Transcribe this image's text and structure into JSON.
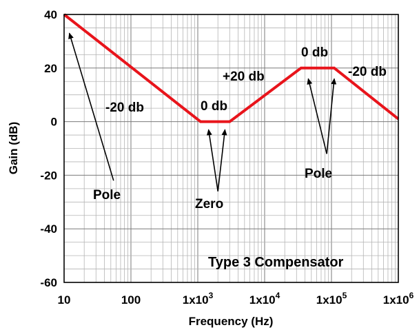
{
  "chart_data": {
    "type": "line",
    "xlabel": "Frequency (Hz)",
    "ylabel": "Gain (dB)",
    "x_scale": "log",
    "xlim": [
      10,
      1000000
    ],
    "ylim": [
      -60,
      40
    ],
    "grid": true,
    "x_ticks": [
      {
        "value": 10,
        "label": "10"
      },
      {
        "value": 100,
        "label": "100"
      },
      {
        "value": 1000,
        "base": "1x10",
        "exp": "3"
      },
      {
        "value": 10000,
        "base": "1x10",
        "exp": "4"
      },
      {
        "value": 100000,
        "base": "1x10",
        "exp": "5"
      },
      {
        "value": 1000000,
        "base": "1x10",
        "exp": "6"
      }
    ],
    "y_ticks": [
      {
        "value": 40,
        "label": "40"
      },
      {
        "value": 20,
        "label": "20"
      },
      {
        "value": 0,
        "label": "0"
      },
      {
        "value": -20,
        "label": "-20"
      },
      {
        "value": -40,
        "label": "-40"
      },
      {
        "value": -60,
        "label": "-60"
      }
    ],
    "series": [
      {
        "color": "#e8141b",
        "x": [
          10,
          1100,
          3000,
          35000,
          110000,
          1000000
        ],
        "y": [
          40,
          0,
          0,
          20,
          20,
          1
        ]
      }
    ],
    "annotations": {
      "slope_minus_left": "-20 db",
      "flat_zero_left": "0 db",
      "slope_plus": "+20 db",
      "flat_zero_top": "0 db",
      "slope_minus_right": "-20 db",
      "pole_left": "Pole",
      "zero": "Zero",
      "pole_right": "Pole",
      "caption": "Type 3 Compensator"
    },
    "arrows": [
      {
        "from": [
          55,
          -22
        ],
        "to": [
          12,
          33
        ]
      },
      {
        "from": [
          2000,
          -26
        ],
        "to": [
          1450,
          -3
        ]
      },
      {
        "from": [
          2000,
          -26
        ],
        "to": [
          2550,
          -3
        ]
      },
      {
        "from": [
          85000,
          -12
        ],
        "to": [
          45000,
          16
        ]
      },
      {
        "from": [
          85000,
          -12
        ],
        "to": [
          110000,
          16
        ]
      }
    ]
  }
}
